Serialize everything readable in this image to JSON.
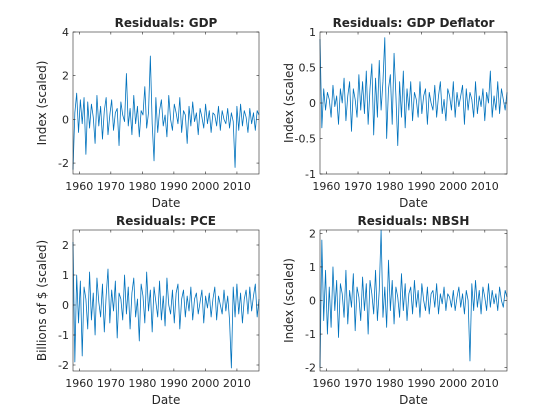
{
  "figure": {
    "background": "#ffffff",
    "axis_color": "#262626",
    "line_color": "#0072bd"
  },
  "chart_data": [
    {
      "type": "line",
      "title": "Residuals: GDP",
      "xlabel": "Date",
      "ylabel": "Index (scaled)",
      "xlim": [
        1958,
        2017
      ],
      "ylim": [
        -2.5,
        4
      ],
      "xticks": [
        1960,
        1970,
        1980,
        1990,
        2000,
        2010
      ],
      "yticks": [
        -2,
        0,
        2,
        4
      ],
      "ytick_labels": [
        "-2",
        "0",
        "2",
        "4"
      ],
      "grid": false,
      "series": [
        {
          "values": [
            -2.3,
            0.3,
            1.2,
            -0.6,
            0.9,
            -0.2,
            1.0,
            -1.6,
            0.8,
            -0.4,
            0.7,
            0.1,
            -1.1,
            1.1,
            -0.3,
            0.6,
            -0.9,
            0.4,
            1.0,
            -0.7,
            0.2,
            0.9,
            -0.5,
            0.3,
            0.5,
            -1.2,
            0.8,
            0.2,
            -0.1,
            2.1,
            -0.3,
            0.5,
            -0.7,
            1.1,
            -0.2,
            0.6,
            -0.8,
            0.4,
            0.2,
            1.5,
            -0.4,
            0.3,
            2.9,
            -0.2,
            -1.9,
            1.0,
            -0.6,
            0.4,
            0.9,
            -0.3,
            0.2,
            -0.8,
            1.1,
            0.0,
            -0.5,
            0.7,
            0.3,
            -0.2,
            1.0,
            -0.6,
            0.4,
            0.2,
            -1.1,
            0.6,
            -0.3,
            0.8,
            -0.1,
            0.3,
            -0.7,
            0.5,
            0.1,
            -0.4,
            0.7,
            -0.2,
            0.4,
            -0.6,
            0.3,
            0.2,
            -0.3,
            0.6,
            -0.5,
            0.4,
            0.0,
            -0.2,
            0.5,
            -0.4,
            0.3,
            -0.1,
            -2.2,
            0.6,
            -0.5,
            0.7,
            -0.3,
            0.4,
            0.1,
            -0.6,
            0.5,
            -0.2,
            0.3,
            -0.5,
            0.4,
            0.2
          ]
        }
      ]
    },
    {
      "type": "line",
      "title": "Residuals: GDP Deflator",
      "xlabel": "Date",
      "ylabel": "Index (scaled",
      "xlim": [
        1958,
        2017
      ],
      "ylim": [
        -1,
        1
      ],
      "xticks": [
        1960,
        1970,
        1980,
        1990,
        2000,
        2010
      ],
      "yticks": [
        -1,
        -0.5,
        0,
        0.5,
        1
      ],
      "ytick_labels": [
        "-1",
        "-0.5",
        "0",
        "0.5",
        "1"
      ],
      "grid": false,
      "series": [
        {
          "values": [
            0.9,
            -0.35,
            0.2,
            -0.1,
            0.15,
            0.05,
            -0.2,
            0.25,
            -0.05,
            0.1,
            -0.3,
            0.2,
            0.0,
            0.35,
            -0.25,
            0.1,
            0.3,
            -0.4,
            0.2,
            0.05,
            -0.2,
            0.4,
            -0.1,
            0.3,
            -0.15,
            0.45,
            -0.3,
            0.2,
            0.55,
            -0.45,
            0.35,
            -0.2,
            0.6,
            -0.1,
            0.3,
            0.92,
            -0.5,
            0.2,
            0.4,
            -0.3,
            0.7,
            0.1,
            -0.6,
            0.3,
            -0.2,
            0.45,
            -0.35,
            0.2,
            -0.1,
            0.3,
            -0.25,
            0.15,
            0.05,
            -0.2,
            0.3,
            -0.15,
            0.1,
            0.2,
            -0.3,
            0.15,
            0.0,
            -0.1,
            0.25,
            -0.2,
            0.1,
            0.3,
            -0.15,
            0.05,
            -0.25,
            0.2,
            0.1,
            -0.1,
            0.3,
            -0.2,
            0.15,
            -0.05,
            0.1,
            0.25,
            -0.3,
            0.2,
            -0.1,
            0.15,
            0.05,
            -0.2,
            0.3,
            -0.15,
            0.1,
            -0.05,
            0.2,
            -0.25,
            0.15,
            0.0,
            0.45,
            -0.2,
            0.1,
            -0.1,
            0.3,
            -0.15,
            0.2,
            0.05,
            -0.1,
            0.15
          ]
        }
      ]
    },
    {
      "type": "line",
      "title": "Residuals: PCE",
      "xlabel": "Date",
      "ylabel": "Billions of $ (scaled)",
      "xlim": [
        1958,
        2017
      ],
      "ylim": [
        -2.2,
        2.5
      ],
      "xticks": [
        1960,
        1970,
        1980,
        1990,
        2000,
        2010
      ],
      "yticks": [
        -2,
        -1,
        0,
        1,
        2
      ],
      "ytick_labels": [
        "-2",
        "-1",
        "0",
        "1",
        "2"
      ],
      "grid": false,
      "series": [
        {
          "values": [
            2.1,
            -1.9,
            1.0,
            -0.6,
            0.8,
            -1.7,
            0.6,
            0.2,
            -0.8,
            1.1,
            -0.5,
            0.4,
            -1.0,
            0.9,
            0.1,
            -0.4,
            0.7,
            -0.9,
            0.3,
            1.2,
            -0.6,
            0.5,
            -0.2,
            0.8,
            -1.1,
            0.4,
            0.2,
            -0.5,
            1.0,
            -0.3,
            0.6,
            -0.8,
            0.4,
            0.9,
            -0.4,
            0.2,
            -1.2,
            0.7,
            0.3,
            -0.6,
            1.1,
            -0.2,
            0.5,
            -0.9,
            0.6,
            0.1,
            -0.4,
            0.8,
            -0.5,
            0.3,
            -0.7,
            0.9,
            0.0,
            -0.3,
            0.5,
            -0.6,
            0.4,
            0.7,
            -0.8,
            0.2,
            0.5,
            -0.4,
            0.3,
            -0.2,
            0.6,
            -0.5,
            0.2,
            0.4,
            -0.3,
            0.1,
            0.5,
            -0.6,
            0.3,
            -0.1,
            0.4,
            -0.4,
            0.2,
            0.6,
            -0.5,
            0.3,
            0.0,
            -0.3,
            0.5,
            -0.2,
            0.3,
            -0.5,
            -2.1,
            0.6,
            -0.4,
            0.7,
            -0.3,
            0.4,
            -0.6,
            0.2,
            0.5,
            -0.3,
            0.6,
            -0.2,
            0.3,
            0.7,
            -0.4,
            0.2
          ]
        }
      ]
    },
    {
      "type": "line",
      "title": "Residuals: NBSH",
      "xlabel": "Date",
      "ylabel": "Index (scaled)",
      "xlim": [
        1958,
        2017
      ],
      "ylim": [
        -2.1,
        2.1
      ],
      "xticks": [
        1960,
        1970,
        1980,
        1990,
        2000,
        2010
      ],
      "yticks": [
        -2,
        -1,
        0,
        1,
        2
      ],
      "ytick_labels": [
        "-2",
        "-1",
        "0",
        "1",
        "2"
      ],
      "grid": false,
      "series": [
        {
          "values": [
            -2.0,
            1.8,
            -0.6,
            0.9,
            -1.0,
            0.4,
            -0.8,
            1.0,
            -0.3,
            0.6,
            -1.1,
            0.5,
            0.2,
            -0.5,
            0.9,
            -0.7,
            0.3,
            -0.2,
            0.8,
            -0.9,
            0.4,
            0.1,
            -0.6,
            0.7,
            -0.3,
            0.5,
            -1.0,
            0.6,
            0.2,
            -0.4,
            0.9,
            -0.6,
            0.3,
            2.1,
            -0.5,
            0.4,
            -0.8,
            1.2,
            -0.3,
            0.6,
            -0.7,
            0.4,
            0.1,
            -0.5,
            0.8,
            -0.3,
            0.5,
            -0.6,
            0.2,
            0.4,
            -0.4,
            0.6,
            -0.2,
            0.3,
            -0.5,
            0.5,
            0.0,
            -0.3,
            0.4,
            -0.4,
            0.2,
            0.3,
            -0.2,
            0.5,
            -0.4,
            0.2,
            -0.1,
            0.4,
            -0.3,
            0.2,
            0.1,
            -0.2,
            0.3,
            -0.3,
            0.1,
            0.4,
            -0.2,
            0.2,
            -0.4,
            0.3,
            0.0,
            -1.8,
            0.5,
            -0.3,
            0.6,
            -0.2,
            0.3,
            -0.4,
            0.4,
            0.1,
            -0.3,
            0.5,
            -0.2,
            0.3,
            -0.1,
            0.2,
            -0.3,
            0.4,
            0.0,
            -0.2,
            0.3,
            0.1
          ]
        }
      ]
    }
  ]
}
